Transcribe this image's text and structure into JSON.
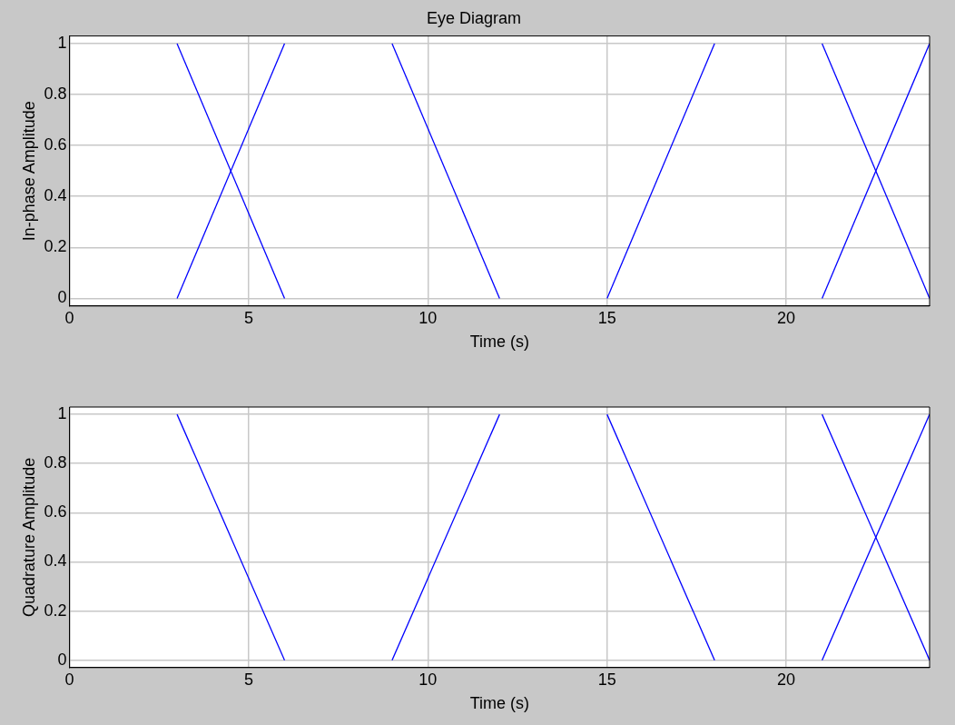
{
  "chart_data": [
    {
      "type": "line",
      "title": "Eye Diagram",
      "xlabel": "Time (s)",
      "ylabel": "In-phase Amplitude",
      "xlim": [
        0,
        24
      ],
      "xticks": [
        0,
        5,
        10,
        15,
        20
      ],
      "ylim": [
        -0.03,
        1.03
      ],
      "yticks": [
        0,
        0.2,
        0.4,
        0.6,
        0.8,
        1
      ],
      "grid": true,
      "legend": false,
      "marker": "none",
      "line_style": "solid",
      "series": [
        {
          "color": "#0000ff",
          "x": [
            3,
            6
          ],
          "values": [
            1,
            0
          ]
        },
        {
          "color": "#0000ff",
          "x": [
            3,
            6
          ],
          "values": [
            0,
            1
          ]
        },
        {
          "color": "#0000ff",
          "x": [
            9,
            12
          ],
          "values": [
            1,
            0
          ]
        },
        {
          "color": "#0000ff",
          "x": [
            15,
            18
          ],
          "values": [
            0,
            1
          ]
        },
        {
          "color": "#0000ff",
          "x": [
            21,
            24
          ],
          "values": [
            1,
            0
          ]
        },
        {
          "color": "#0000ff",
          "x": [
            21,
            24
          ],
          "values": [
            0,
            1
          ]
        }
      ]
    },
    {
      "type": "line",
      "xlabel": "Time (s)",
      "ylabel": "Quadrature Amplitude",
      "xlim": [
        0,
        24
      ],
      "xticks": [
        0,
        5,
        10,
        15,
        20
      ],
      "ylim": [
        -0.03,
        1.03
      ],
      "yticks": [
        0,
        0.2,
        0.4,
        0.6,
        0.8,
        1
      ],
      "grid": true,
      "legend": false,
      "marker": "none",
      "line_style": "solid",
      "series": [
        {
          "color": "#0000ff",
          "x": [
            3,
            6
          ],
          "values": [
            1,
            0
          ]
        },
        {
          "color": "#0000ff",
          "x": [
            9,
            12
          ],
          "values": [
            0,
            1
          ]
        },
        {
          "color": "#0000ff",
          "x": [
            15,
            18
          ],
          "values": [
            1,
            0
          ]
        },
        {
          "color": "#0000ff",
          "x": [
            21,
            24
          ],
          "values": [
            1,
            0
          ]
        },
        {
          "color": "#0000ff",
          "x": [
            21,
            24
          ],
          "values": [
            0,
            1
          ]
        }
      ]
    }
  ]
}
